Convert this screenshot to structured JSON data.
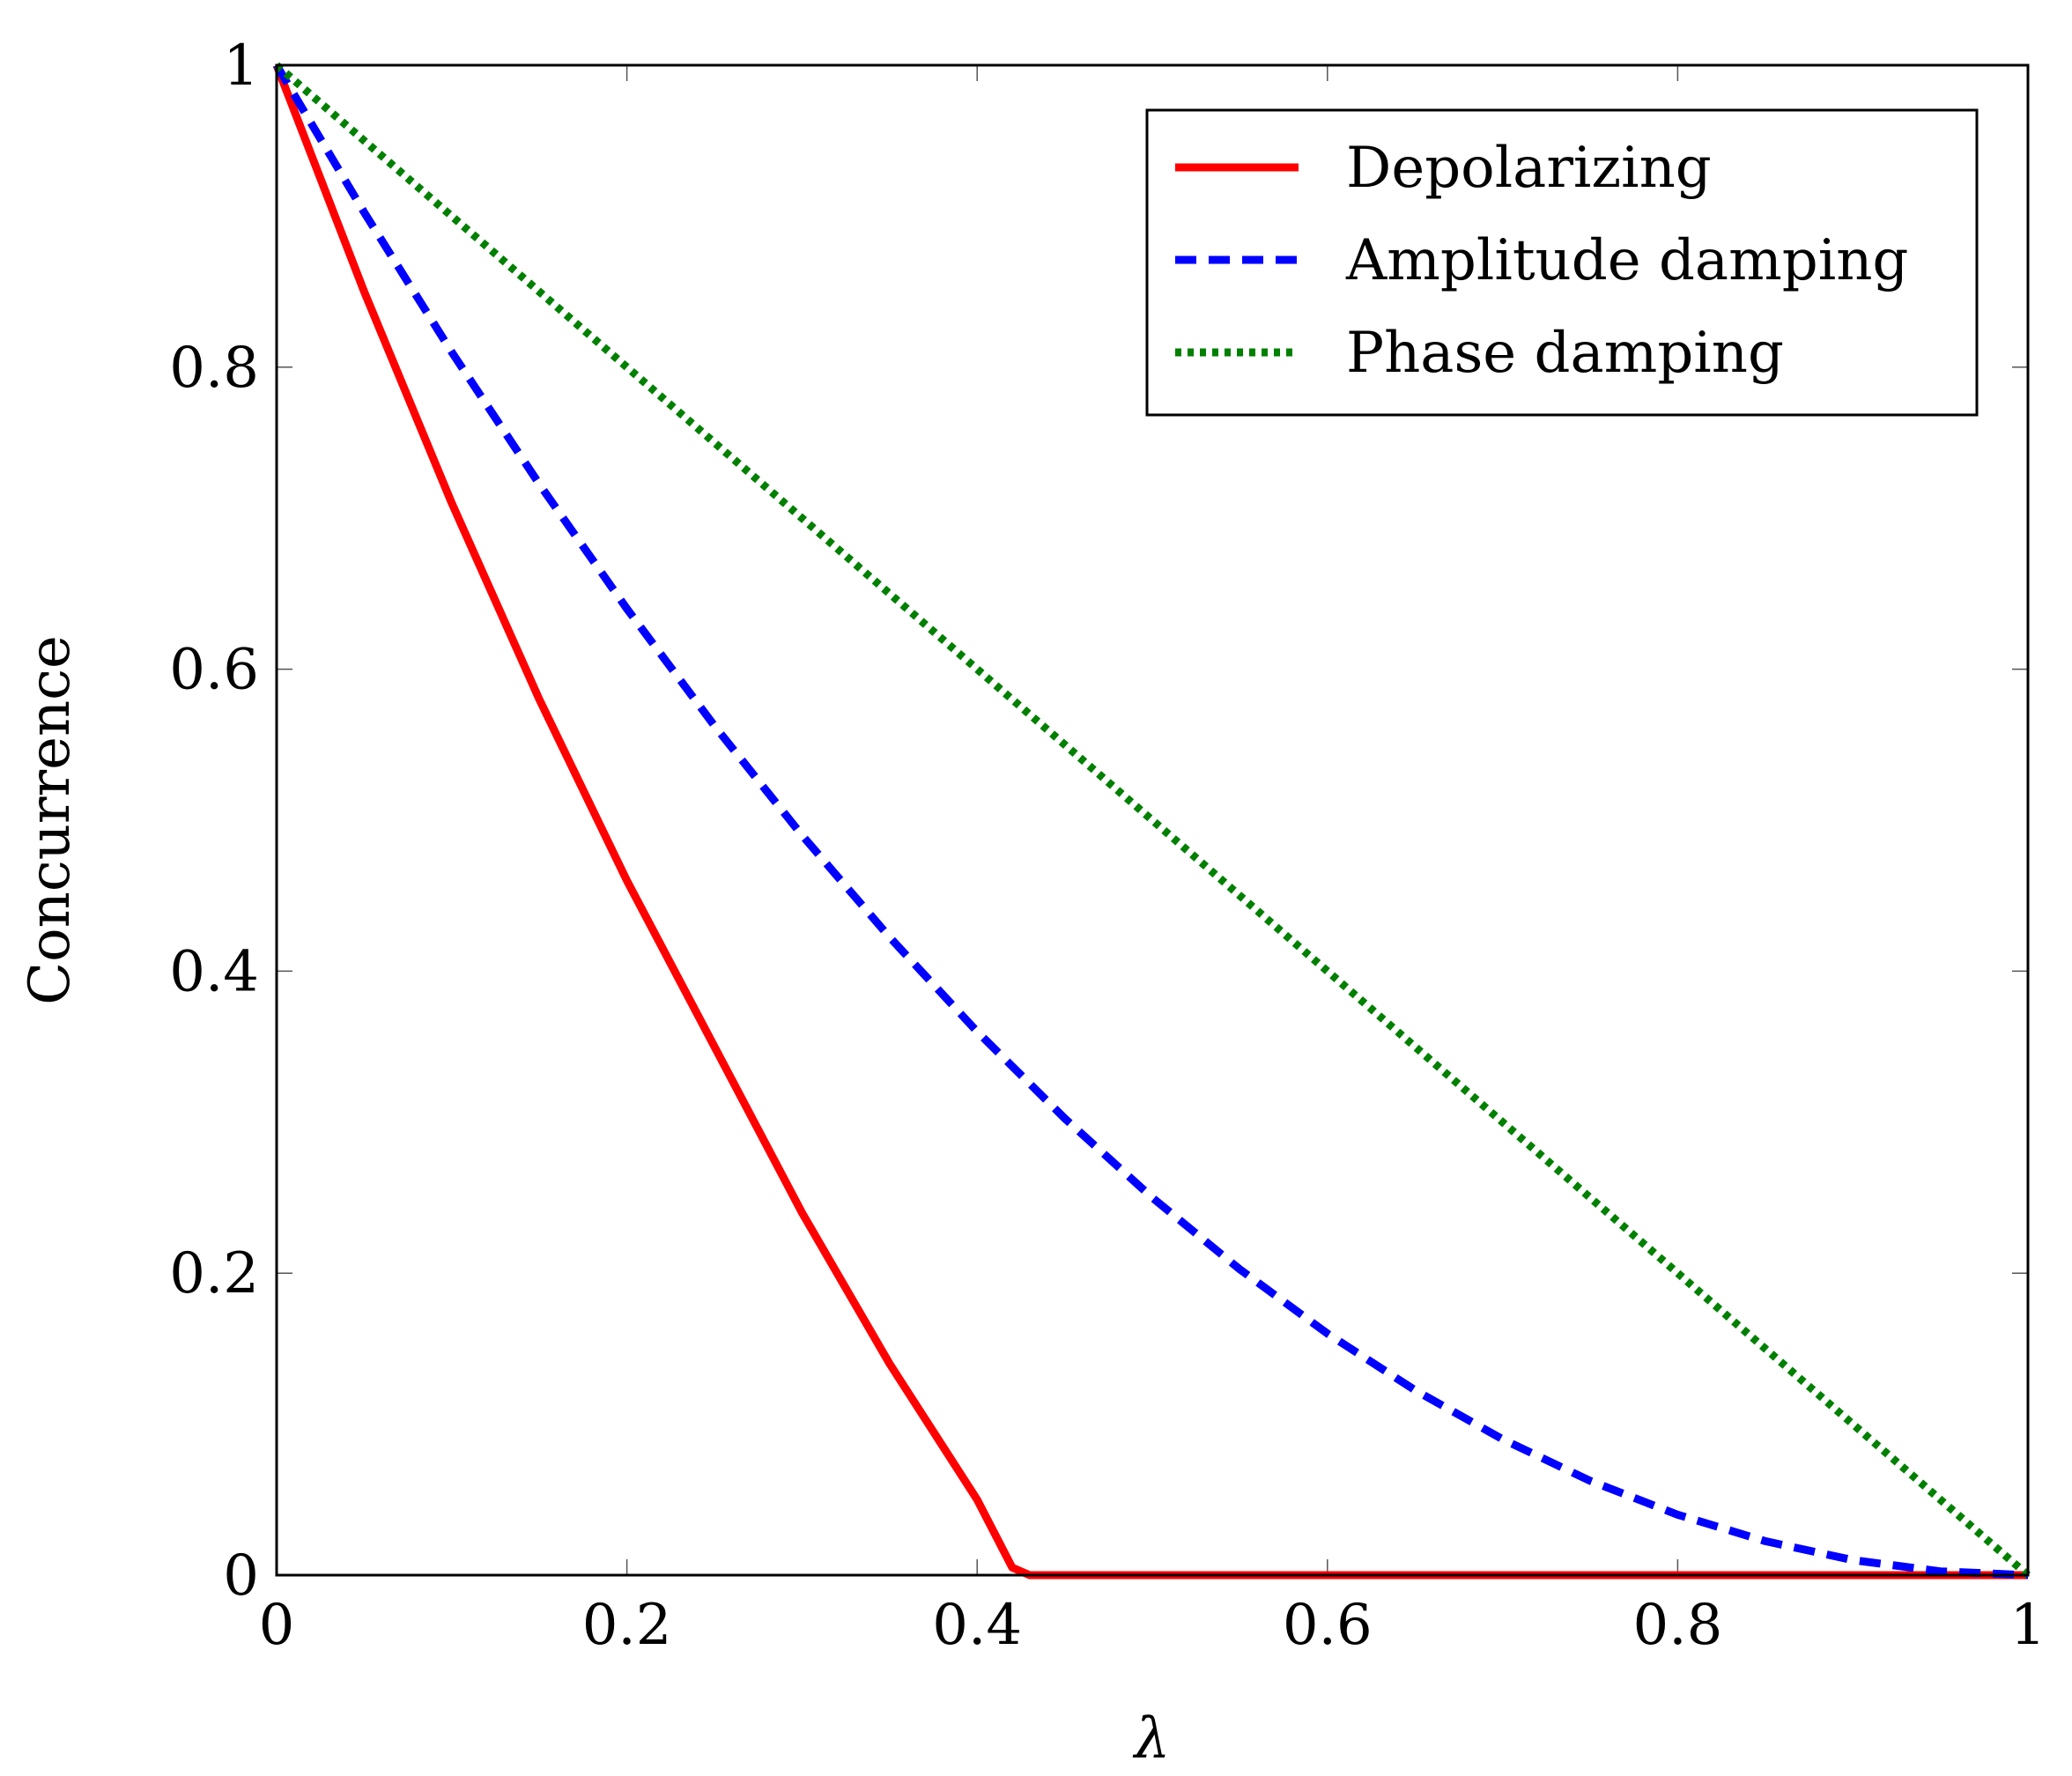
{
  "chart_data": {
    "type": "line",
    "title": "",
    "xlabel": "λ",
    "ylabel": "Concurrence",
    "xlim": [
      0,
      1
    ],
    "ylim": [
      0,
      1
    ],
    "grid": false,
    "legend_position": "top-right",
    "xticks": [
      {
        "value": 0,
        "label": "0"
      },
      {
        "value": 0.2,
        "label": "0.2"
      },
      {
        "value": 0.4,
        "label": "0.4"
      },
      {
        "value": 0.6,
        "label": "0.6"
      },
      {
        "value": 0.8,
        "label": "0.8"
      },
      {
        "value": 1,
        "label": "1"
      }
    ],
    "yticks": [
      {
        "value": 0,
        "label": "0"
      },
      {
        "value": 0.2,
        "label": "0.2"
      },
      {
        "value": 0.4,
        "label": "0.4"
      },
      {
        "value": 0.6,
        "label": "0.6"
      },
      {
        "value": 0.8,
        "label": "0.8"
      },
      {
        "value": 1,
        "label": "1"
      }
    ],
    "series": [
      {
        "name": "Depolarizing",
        "color": "#ff0000",
        "style": "solid",
        "x": [
          0,
          0.05,
          0.1,
          0.15,
          0.2,
          0.25,
          0.3,
          0.35,
          0.4,
          0.42,
          0.43,
          0.5,
          0.6,
          0.7,
          0.8,
          0.9,
          1
        ],
        "y": [
          1,
          0.85,
          0.71,
          0.58,
          0.46,
          0.35,
          0.24,
          0.14,
          0.05,
          0.005,
          0,
          0,
          0,
          0,
          0,
          0,
          0
        ]
      },
      {
        "name": "Amplitude damping",
        "color": "#0000ff",
        "style": "dashed",
        "x": [
          0,
          0.05,
          0.1,
          0.15,
          0.2,
          0.25,
          0.3,
          0.35,
          0.4,
          0.45,
          0.5,
          0.55,
          0.6,
          0.65,
          0.7,
          0.75,
          0.8,
          0.85,
          0.9,
          0.95,
          1
        ],
        "y": [
          1,
          0.9025,
          0.81,
          0.7225,
          0.64,
          0.5625,
          0.49,
          0.4225,
          0.36,
          0.3025,
          0.25,
          0.2025,
          0.16,
          0.1225,
          0.09,
          0.0625,
          0.04,
          0.0225,
          0.01,
          0.0025,
          0
        ]
      },
      {
        "name": "Phase damping",
        "color": "#008000",
        "style": "dotted",
        "x": [
          0,
          0.25,
          0.5,
          0.75,
          1
        ],
        "y": [
          1,
          0.75,
          0.5,
          0.25,
          0
        ]
      }
    ]
  }
}
